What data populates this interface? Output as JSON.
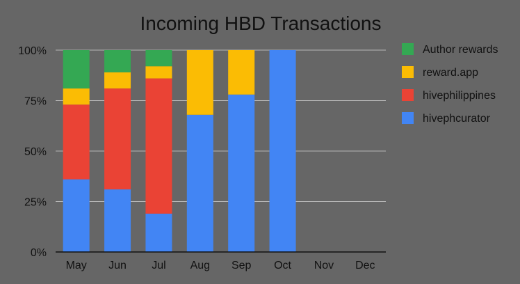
{
  "chart_data": {
    "type": "bar",
    "stacking": "percent",
    "title": "Incoming HBD Transactions",
    "xlabel": "",
    "ylabel": "",
    "categories": [
      "May",
      "Jun",
      "Jul",
      "Aug",
      "Sep",
      "Oct",
      "Nov",
      "Dec"
    ],
    "yticks": [
      "0%",
      "25%",
      "50%",
      "75%",
      "100%"
    ],
    "ylim": [
      0,
      100
    ],
    "grid": true,
    "legend_position": "right",
    "series": [
      {
        "name": "hivephcurator",
        "color": "#4285f4",
        "values": [
          36,
          31,
          19,
          68,
          78,
          100,
          0,
          0
        ]
      },
      {
        "name": "hivephilippines",
        "color": "#ea4335",
        "values": [
          37,
          50,
          67,
          0,
          0,
          0,
          0,
          0
        ]
      },
      {
        "name": "reward.app",
        "color": "#fbbc04",
        "values": [
          8,
          8,
          6,
          32,
          22,
          0,
          0,
          0
        ]
      },
      {
        "name": "Author rewards",
        "color": "#34a853",
        "values": [
          19,
          11,
          8,
          0,
          0,
          0,
          0,
          0
        ]
      }
    ],
    "legend_order": [
      "Author rewards",
      "reward.app",
      "hivephilippines",
      "hivephcurator"
    ]
  }
}
